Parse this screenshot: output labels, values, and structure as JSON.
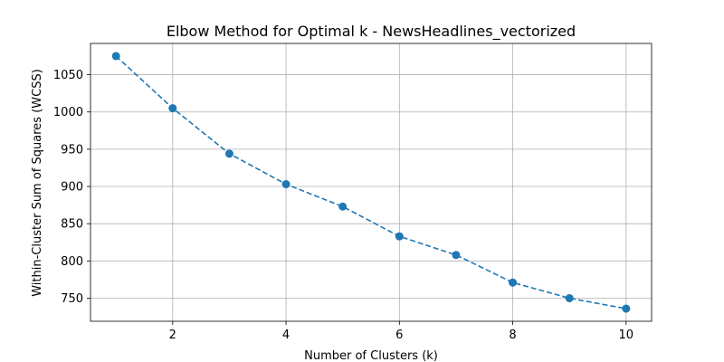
{
  "chart_data": {
    "type": "line",
    "title": "Elbow Method for Optimal k - NewsHeadlines_vectorized",
    "xlabel": "Number of Clusters (k)",
    "ylabel": "Within-Cluster Sum of Squares (WCSS)",
    "x": [
      1,
      2,
      3,
      4,
      5,
      6,
      7,
      8,
      9,
      10
    ],
    "series": [
      {
        "values": [
          1075,
          1005,
          944,
          903,
          873,
          833,
          808,
          771,
          750,
          736
        ],
        "color": "#1f77b4",
        "line_style": "dashed",
        "marker": "circle"
      }
    ],
    "xlim": [
      0.55,
      10.45
    ],
    "ylim": [
      719,
      1092
    ],
    "xticks": [
      2,
      4,
      6,
      8,
      10
    ],
    "yticks": [
      750,
      800,
      850,
      900,
      950,
      1000,
      1050
    ],
    "grid": true,
    "legend": "none"
  }
}
